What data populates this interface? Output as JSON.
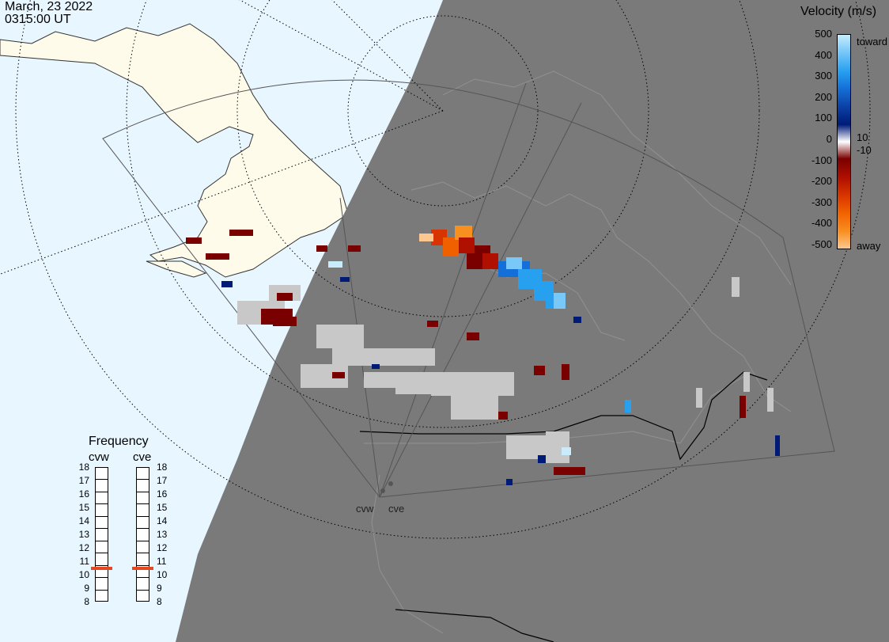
{
  "header": {
    "date": "March, 23 2022",
    "time": "0315:00 UT"
  },
  "legend": {
    "title": "Velocity (m/s)",
    "ticks": [
      "500",
      "400",
      "300",
      "200",
      "100",
      "0",
      "-100",
      "-200",
      "-300",
      "-400",
      "-500"
    ],
    "toward_label": "toward",
    "away_label": "away",
    "low_pos_label": "10",
    "low_neg_label": "-10",
    "colors": [
      "#c8ecfc",
      "#78c8f8",
      "#28a0f0",
      "#1470d8",
      "#0c44a8",
      "#001a78",
      "#ffffff",
      "#7a0000",
      "#b01000",
      "#d83400",
      "#f06000",
      "#f89020",
      "#fcc890"
    ]
  },
  "frequency": {
    "title": "Frequency",
    "radars": [
      {
        "name": "cvw",
        "value": 10.5
      },
      {
        "name": "cve",
        "value": 10.5
      }
    ],
    "levels": [
      "18",
      "17",
      "16",
      "15",
      "14",
      "13",
      "12",
      "11",
      "10",
      "9",
      "8"
    ],
    "marker_color": "#e8461e"
  },
  "radar_sites": [
    {
      "name": "cvw"
    },
    {
      "name": "cve"
    }
  ],
  "map_colors": {
    "ocean": "#e8f6ff",
    "land": "#fffbea",
    "night": "#7a7a7a",
    "scatter_gray": "#c8c8c8"
  }
}
